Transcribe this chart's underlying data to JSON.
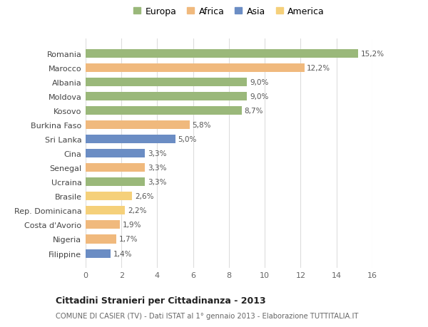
{
  "countries": [
    "Romania",
    "Marocco",
    "Albania",
    "Moldova",
    "Kosovo",
    "Burkina Faso",
    "Sri Lanka",
    "Cina",
    "Senegal",
    "Ucraina",
    "Brasile",
    "Rep. Dominicana",
    "Costa d'Avorio",
    "Nigeria",
    "Filippine"
  ],
  "values": [
    15.2,
    12.2,
    9.0,
    9.0,
    8.7,
    5.8,
    5.0,
    3.3,
    3.3,
    3.3,
    2.6,
    2.2,
    1.9,
    1.7,
    1.4
  ],
  "labels": [
    "15,2%",
    "12,2%",
    "9,0%",
    "9,0%",
    "8,7%",
    "5,8%",
    "5,0%",
    "3,3%",
    "3,3%",
    "3,3%",
    "2,6%",
    "2,2%",
    "1,9%",
    "1,7%",
    "1,4%"
  ],
  "continents": [
    "Europa",
    "Africa",
    "Europa",
    "Europa",
    "Europa",
    "Africa",
    "Asia",
    "Asia",
    "Africa",
    "Europa",
    "America",
    "America",
    "Africa",
    "Africa",
    "Asia"
  ],
  "colors": {
    "Europa": "#9ab87a",
    "Africa": "#f0b97d",
    "Asia": "#6b8dc4",
    "America": "#f5d07a"
  },
  "legend_order": [
    "Europa",
    "Africa",
    "Asia",
    "America"
  ],
  "xlim": [
    0,
    16
  ],
  "xticks": [
    0,
    2,
    4,
    6,
    8,
    10,
    12,
    14,
    16
  ],
  "title": "Cittadini Stranieri per Cittadinanza - 2013",
  "subtitle": "COMUNE DI CASIER (TV) - Dati ISTAT al 1° gennaio 2013 - Elaborazione TUTTITALIA.IT",
  "background_color": "#ffffff",
  "bar_height": 0.6,
  "grid_color": "#dddddd"
}
